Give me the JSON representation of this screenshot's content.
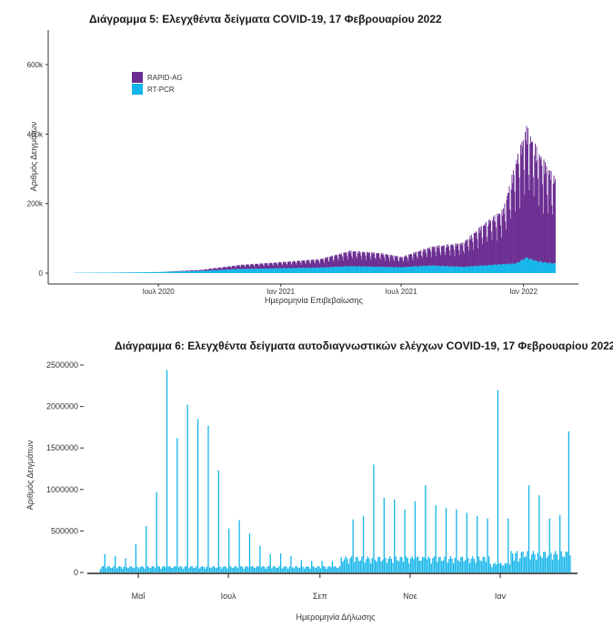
{
  "chart_data": [
    {
      "type": "bar",
      "title": "Διάγραμμα 5: Ελεγχθέντα δείγματα COVID-19, 17 Φεβρουαρίου 2022",
      "xlabel": "Ημερομηνία Επιβεβαίωσης",
      "ylabel": "Αριθμός Δειγμάτων",
      "stacked": true,
      "ylim": [
        0,
        680000
      ],
      "y_ticks": [
        0,
        200000,
        400000,
        600000
      ],
      "y_tick_labels": [
        "0",
        "200k",
        "400k",
        "600k"
      ],
      "x_range": [
        "2020-02-26",
        "2022-02-17"
      ],
      "x_ticks": [
        "2020-07-01",
        "2021-01-01",
        "2021-07-01",
        "2022-01-01"
      ],
      "x_tick_labels": [
        "Ιουλ 2020",
        "Ιαν 2021",
        "Ιουλ 2021",
        "Ιαν 2022"
      ],
      "legend_position": "top-left",
      "colors": {
        "RAPID-AG": "#6a2c91",
        "RT-PCR": "#13b5ea"
      },
      "series": [
        {
          "name": "RAPID-AG",
          "x": [
            "2020-03-01",
            "2020-05-01",
            "2020-07-01",
            "2020-09-01",
            "2020-11-01",
            "2021-01-01",
            "2021-03-01",
            "2021-04-15",
            "2021-06-01",
            "2021-07-01",
            "2021-08-15",
            "2021-10-01",
            "2021-11-01",
            "2021-12-01",
            "2021-12-20",
            "2022-01-05",
            "2022-01-20",
            "2022-02-05",
            "2022-02-17"
          ],
          "y": [
            0,
            0,
            0,
            3000,
            12000,
            18000,
            25000,
            45000,
            40000,
            30000,
            55000,
            70000,
            120000,
            160000,
            300000,
            380000,
            330000,
            280000,
            250000
          ]
        },
        {
          "name": "RT-PCR",
          "x": [
            "2020-03-01",
            "2020-05-01",
            "2020-07-01",
            "2020-09-01",
            "2020-11-01",
            "2021-01-01",
            "2021-03-01",
            "2021-04-15",
            "2021-06-01",
            "2021-07-01",
            "2021-08-15",
            "2021-10-01",
            "2021-11-01",
            "2021-12-01",
            "2021-12-20",
            "2022-01-05",
            "2022-01-20",
            "2022-02-05",
            "2022-02-17"
          ],
          "y": [
            800,
            1500,
            3000,
            6000,
            12000,
            14000,
            16000,
            20000,
            18000,
            17000,
            22000,
            18000,
            22000,
            26000,
            28000,
            45000,
            35000,
            30000,
            28000
          ]
        }
      ]
    },
    {
      "type": "bar",
      "title": "Διάγραμμα 6: Ελεγχθέντα δείγματα αυτοδιαγνωστικών ελέγχων COVID-19, 17 Φεβρουαρίου 2022",
      "xlabel": "Ημερομηνία Δήλωσης",
      "ylabel": "Αριθμός Δειγμάτων",
      "ylim": [
        0,
        2500000
      ],
      "y_ticks": [
        0,
        500000,
        1000000,
        1500000,
        2000000,
        2500000
      ],
      "y_tick_labels": [
        "0",
        "500000",
        "1000000",
        "1500000",
        "2000000",
        "2500000"
      ],
      "x_range": [
        "2021-04-05",
        "2022-02-17"
      ],
      "x_ticks": [
        "2021-05-01",
        "2021-07-01",
        "2021-09-01",
        "2021-11-01",
        "2022-01-01"
      ],
      "x_tick_labels": [
        "Μαΐ",
        "Ιουλ",
        "Σεπ",
        "Νοε",
        "Ιαν"
      ],
      "color": "#13b5ea",
      "series": [
        {
          "x": [
            "2021-04-08",
            "2021-04-15",
            "2021-04-22",
            "2021-04-29",
            "2021-05-06",
            "2021-05-13",
            "2021-05-20",
            "2021-05-27",
            "2021-06-03",
            "2021-06-10",
            "2021-06-17",
            "2021-06-24",
            "2021-07-01",
            "2021-07-08",
            "2021-07-15",
            "2021-07-22",
            "2021-07-29",
            "2021-08-05",
            "2021-08-12",
            "2021-08-19",
            "2021-08-26",
            "2021-09-02",
            "2021-09-09",
            "2021-09-16",
            "2021-09-23",
            "2021-09-30",
            "2021-10-07",
            "2021-10-14",
            "2021-10-21",
            "2021-10-28",
            "2021-11-04",
            "2021-11-11",
            "2021-11-18",
            "2021-11-25",
            "2021-12-02",
            "2021-12-09",
            "2021-12-16",
            "2021-12-23",
            "2021-12-30",
            "2022-01-06",
            "2022-01-13",
            "2022-01-20",
            "2022-01-27",
            "2022-02-03",
            "2022-02-10",
            "2022-02-16"
          ],
          "y": [
            220000,
            200000,
            170000,
            340000,
            560000,
            970000,
            2440000,
            1620000,
            2020000,
            1850000,
            1770000,
            1230000,
            530000,
            630000,
            470000,
            320000,
            220000,
            230000,
            200000,
            150000,
            140000,
            140000,
            140000,
            130000,
            640000,
            680000,
            1300000,
            900000,
            880000,
            760000,
            860000,
            1050000,
            810000,
            780000,
            760000,
            720000,
            680000,
            650000,
            2200000,
            650000,
            130000,
            1050000,
            930000,
            650000,
            690000,
            1700000
          ]
        }
      ]
    }
  ]
}
